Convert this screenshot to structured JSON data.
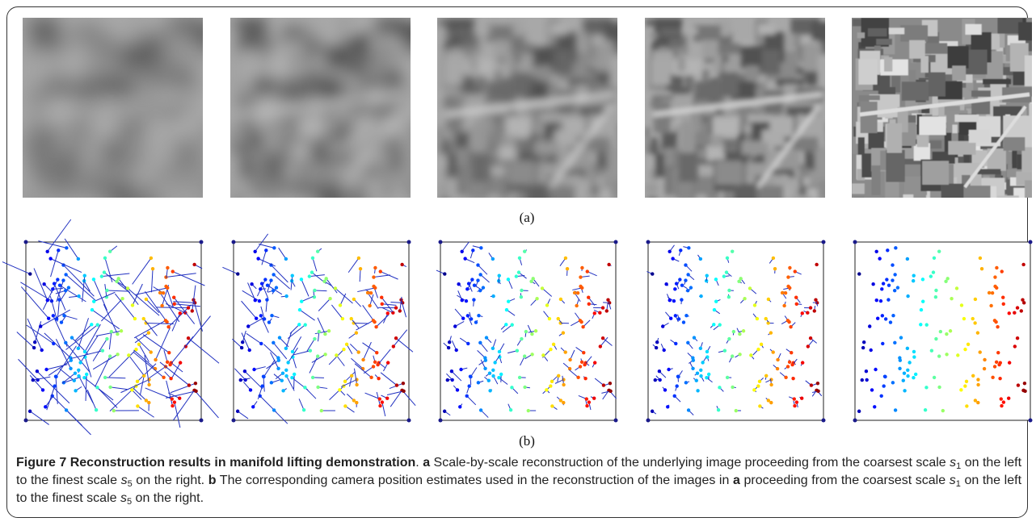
{
  "figure": {
    "panel_labels": [
      "(a)",
      "(b)"
    ],
    "caption": [
      "Figure 7 Reconstruction results in manifold lifting demonstration",
      ". ",
      "a",
      " Scale-by-scale reconstruction of the underlying image proceeding from the coarsest scale ",
      "s",
      "1",
      " on the left to the finest scale ",
      "s",
      "5",
      " on the right. ",
      "b",
      " The corresponding camera position estimates used in the reconstruction of the images in ",
      "a",
      " proceeding from the coarsest scale ",
      "s",
      "1",
      " on the left to the finest scale ",
      "s",
      "5",
      " on the right."
    ]
  }
}
